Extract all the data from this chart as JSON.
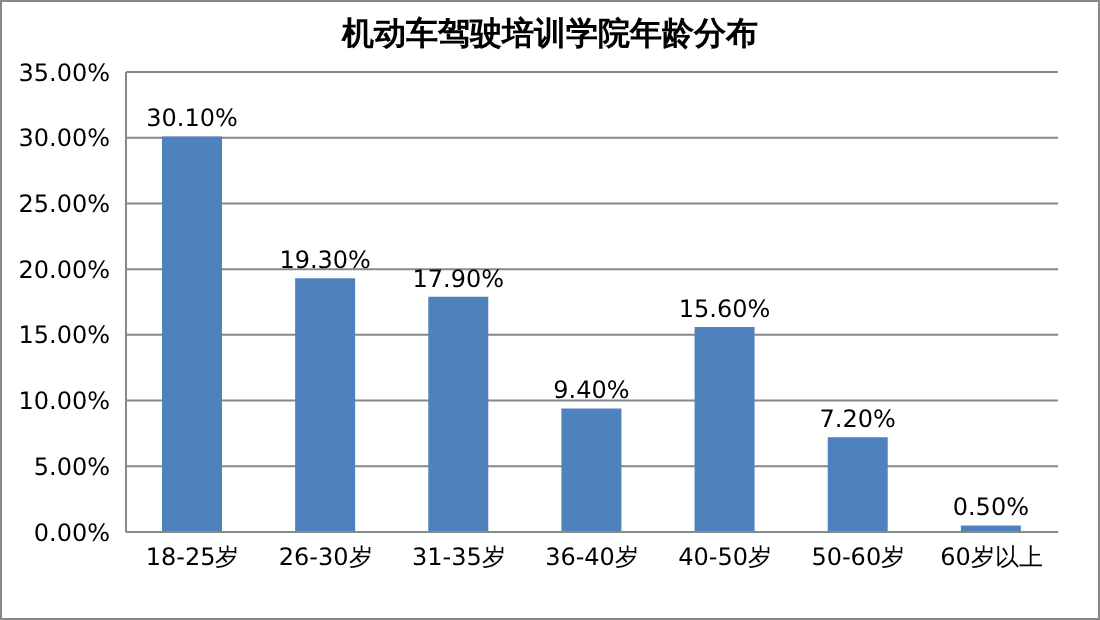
{
  "chart_data": {
    "type": "bar",
    "title": "机动车驾驶培训学院年龄分布",
    "categories": [
      "18-25岁",
      "26-30岁",
      "31-35岁",
      "36-40岁",
      "40-50岁",
      "50-60岁",
      "60岁以上"
    ],
    "values": [
      30.1,
      19.3,
      17.9,
      9.4,
      15.6,
      7.2,
      0.5
    ],
    "value_labels": [
      "30.10%",
      "19.30%",
      "17.90%",
      "9.40%",
      "15.60%",
      "7.20%",
      "0.50%"
    ],
    "color": "#4f81bd",
    "ylim": [
      0,
      35
    ],
    "yticks": [
      {
        "value": 0,
        "label": "0.00%"
      },
      {
        "value": 5,
        "label": "5.00%"
      },
      {
        "value": 10,
        "label": "10.00%"
      },
      {
        "value": 15,
        "label": "15.00%"
      },
      {
        "value": 20,
        "label": "20.00%"
      },
      {
        "value": 25,
        "label": "25.00%"
      },
      {
        "value": 30,
        "label": "30.00%"
      },
      {
        "value": 35,
        "label": "35.00%"
      }
    ],
    "grid": "y",
    "legend": false
  }
}
